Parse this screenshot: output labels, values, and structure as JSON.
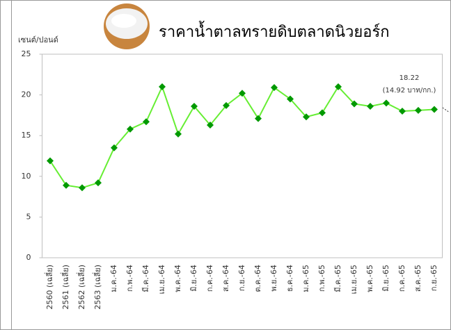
{
  "chart_data": {
    "type": "line",
    "title": "ราคาน้ำตาลทรายดิบตลาดนิวยอร์ก",
    "y_label": "เซนต์/ปอนด์",
    "annotations": [
      "18.22",
      "(14.92 บาท/กก.)"
    ],
    "categories": [
      "2560 (เฉลี่ย)",
      "2561 (เฉลี่ย)",
      "2562 (เฉลี่ย)",
      "2563 (เฉลี่ย)",
      "ม.ค.-64",
      "ก.พ.-64",
      "มี.ค.-64",
      "เม.ย.-64",
      "พ.ค.-64",
      "มิ.ย.-64",
      "ก.ค.-64",
      "ส.ค.-64",
      "ก.ย.-64",
      "ต.ค.-64",
      "พ.ย.-64",
      "ธ.ค.-64",
      "ม.ค.-65",
      "ก.พ.-65",
      "มี.ค.-65",
      "เม.ย.-65",
      "พ.ค.-65",
      "มิ.ย.-65",
      "ก.ค.-65",
      "ส.ค.-65",
      "ก.ย.-65"
    ],
    "values": [
      11.9,
      8.9,
      8.6,
      9.2,
      13.5,
      15.8,
      16.7,
      21.0,
      15.2,
      18.6,
      16.3,
      18.7,
      20.2,
      17.1,
      20.9,
      19.5,
      17.3,
      17.8,
      21.0,
      18.9,
      18.6,
      19.0,
      18.0,
      18.1,
      18.22
    ],
    "color": "#66ee33",
    "marker_color": "#009900",
    "ylim": [
      0,
      25
    ],
    "yticks": [
      0,
      5,
      10,
      15,
      20,
      25
    ],
    "grid": false
  }
}
